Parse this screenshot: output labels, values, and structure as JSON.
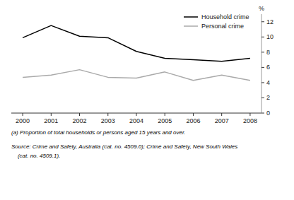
{
  "chart_data": {
    "type": "line",
    "x": [
      2000,
      2001,
      2002,
      2003,
      2004,
      2005,
      2006,
      2007,
      2008
    ],
    "series": [
      {
        "name": "Household crime",
        "color": "#000000",
        "values": [
          9.9,
          11.5,
          10.1,
          9.9,
          8.1,
          7.2,
          7.0,
          6.8,
          7.2
        ]
      },
      {
        "name": "Personal crime",
        "color": "#aaaaaa",
        "values": [
          4.7,
          5.0,
          5.7,
          4.7,
          4.6,
          5.4,
          4.3,
          5.0,
          4.3
        ]
      }
    ],
    "xlim": [
      1999.6,
      2008.4
    ],
    "xticks": [
      2000,
      2001,
      2002,
      2003,
      2004,
      2005,
      2006,
      2007,
      2008
    ],
    "ylim": [
      0,
      13
    ],
    "yticks": [
      0,
      2,
      4,
      6,
      8,
      10,
      12
    ],
    "y_label": "%",
    "annotations": [
      "(a) Proportion of total households or persons aged 15 years and over.",
      "Source: Crime and Safety, Australia (cat. no. 4509.0); Crime and Safety, New South Wales",
      "    (cat. no. 4509.1)."
    ],
    "legend": "upper right",
    "grid": false
  }
}
